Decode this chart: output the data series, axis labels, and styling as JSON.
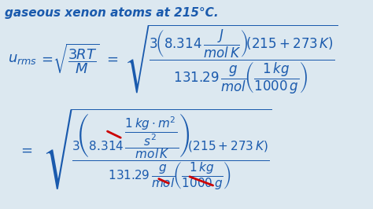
{
  "background_color": "#dce8f0",
  "text_color": "#1a5aad",
  "red_color": "#cc0000",
  "header_text": "gaseous xenon atoms at 215°C.",
  "header_fontsize": 11,
  "eq1_left": "$u_{rms}$",
  "eq1_eq": "$=$",
  "eq1_sqrt_frac": "$\\sqrt{\\dfrac{3RT}{M}}$",
  "eq1_eq2": "$=$",
  "eq1_rhs": "$\\sqrt{\\dfrac{3\\left(8.314\\,\\dfrac{J}{mol\\,K}\\right)(215+273\\,K)}{131.29\\,\\dfrac{g}{mol}\\left(\\dfrac{1\\,kg}{1000\\,g}\\right)}}$",
  "eq2_lhs": "$=$",
  "eq2_rhs_num": "$3\\left(8.314\\,\\dfrac{\\dfrac{1\\,kg\\cdot m^{2}}{s^{2}}}{mol\\,K}\\right)(215+273\\,K)$",
  "eq2_rhs_den": "$131.29\\,\\dfrac{g}{mol}\\left(\\dfrac{1\\,kg}{1000\\,g}\\right)$",
  "fig_width": 4.74,
  "fig_height": 2.66,
  "dpi": 100
}
